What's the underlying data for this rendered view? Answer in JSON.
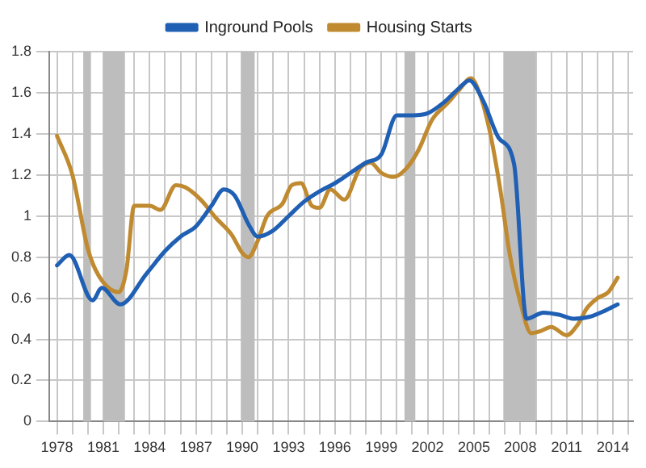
{
  "chart_data": {
    "type": "line",
    "xlim": [
      1977.5,
      2015.3
    ],
    "ylim": [
      0,
      1.8
    ],
    "xticks": [
      1978,
      {
        "value": 1979,
        "label": null
      },
      {
        "value": 1980,
        "label": null
      },
      1981,
      {
        "value": 1982,
        "label": null
      },
      {
        "value": 1983,
        "label": null
      },
      1984,
      {
        "value": 1985,
        "label": null
      },
      {
        "value": 1986,
        "label": null
      },
      1987,
      {
        "value": 1988,
        "label": null
      },
      {
        "value": 1989,
        "label": null
      },
      1990,
      {
        "value": 1991,
        "label": null
      },
      {
        "value": 1992,
        "label": null
      },
      1993,
      {
        "value": 1994,
        "label": null
      },
      {
        "value": 1995,
        "label": null
      },
      1996,
      {
        "value": 1997,
        "label": null
      },
      {
        "value": 1998,
        "label": null
      },
      1999,
      {
        "value": 2000,
        "label": null
      },
      {
        "value": 2001,
        "label": null
      },
      2002,
      {
        "value": 2003,
        "label": null
      },
      {
        "value": 2004,
        "label": null
      },
      2005,
      {
        "value": 2006,
        "label": null
      },
      {
        "value": 2007,
        "label": null
      },
      2008,
      {
        "value": 2009,
        "label": null
      },
      {
        "value": 2010,
        "label": null
      },
      2011,
      {
        "value": 2012,
        "label": null
      },
      {
        "value": 2013,
        "label": null
      },
      2014,
      {
        "value": 2015,
        "label": null
      }
    ],
    "yticks": [
      0,
      0.2,
      0.4,
      0.6,
      0.8,
      1,
      1.2,
      1.4,
      1.6,
      1.8
    ],
    "grid": true,
    "legend": "top",
    "marker": "none",
    "line_style": "solid",
    "bands": [
      {
        "axis": "x",
        "from": 1979.7,
        "to": 1980.2,
        "color": "#bdbdbd"
      },
      {
        "axis": "x",
        "from": 1981.0,
        "to": 1982.4,
        "color": "#bdbdbd"
      },
      {
        "axis": "x",
        "from": 1989.9,
        "to": 1990.8,
        "color": "#bdbdbd"
      },
      {
        "axis": "x",
        "from": 2000.5,
        "to": 2001.2,
        "color": "#bdbdbd"
      },
      {
        "axis": "x",
        "from": 2006.9,
        "to": 2009.0,
        "color": "#bdbdbd"
      }
    ],
    "series": [
      {
        "name": "Inground Pools",
        "color": "#1f5fb4",
        "x": [
          1978,
          1978.8,
          1980.3,
          1980.9,
          1982.1,
          1983.8,
          1985,
          1986,
          1987,
          1988,
          1988.8,
          1989.5,
          1990.4,
          1991,
          1992,
          1993,
          1994,
          1995,
          1996,
          1997,
          1998,
          1999,
          2000,
          2001,
          2002,
          2003,
          2004,
          2004.7,
          2005.6,
          2006.6,
          2007.6,
          2008.4,
          2009.5,
          2010.5,
          2011.5,
          2012.5,
          2013.5,
          2014.3
        ],
        "values": [
          0.76,
          0.81,
          0.59,
          0.65,
          0.57,
          0.72,
          0.83,
          0.9,
          0.95,
          1.05,
          1.13,
          1.1,
          0.96,
          0.9,
          0.93,
          1,
          1.07,
          1.12,
          1.16,
          1.21,
          1.26,
          1.3,
          1.49,
          1.49,
          1.5,
          1.55,
          1.62,
          1.66,
          1.56,
          1.38,
          1.25,
          0.5,
          0.53,
          0.52,
          0.5,
          0.51,
          0.54,
          0.57
        ]
      },
      {
        "name": "Housing Starts",
        "color": "#c08a30",
        "x": [
          1978,
          1979,
          1980,
          1980.7,
          1982,
          1982.5,
          1983,
          1984,
          1984.7,
          1985.7,
          1986.3,
          1987.3,
          1988.3,
          1989.3,
          1990,
          1990.4,
          1991,
          1991.6,
          1992.6,
          1993.2,
          1993.8,
          1994.5,
          1995,
          1995.7,
          1996.6,
          1997.6,
          1998.3,
          1999,
          1999.8,
          2000.6,
          2001.4,
          2002.3,
          2003.3,
          2004,
          2004.8,
          2005.3,
          2006,
          2006.7,
          2007.3,
          2008,
          2008.7,
          2009.3,
          2010,
          2011,
          2011.7,
          2012.3,
          2013,
          2013.7,
          2014.3
        ],
        "values": [
          1.39,
          1.2,
          0.84,
          0.71,
          0.63,
          0.74,
          1.05,
          1.05,
          1.03,
          1.15,
          1.14,
          1.08,
          0.99,
          0.91,
          0.82,
          0.8,
          0.88,
          1,
          1.06,
          1.15,
          1.16,
          1.05,
          1.04,
          1.13,
          1.08,
          1.23,
          1.26,
          1.21,
          1.19,
          1.23,
          1.32,
          1.47,
          1.55,
          1.61,
          1.67,
          1.61,
          1.42,
          1.13,
          0.82,
          0.58,
          0.43,
          0.44,
          0.46,
          0.42,
          0.47,
          0.55,
          0.6,
          0.63,
          0.7
        ]
      }
    ]
  }
}
